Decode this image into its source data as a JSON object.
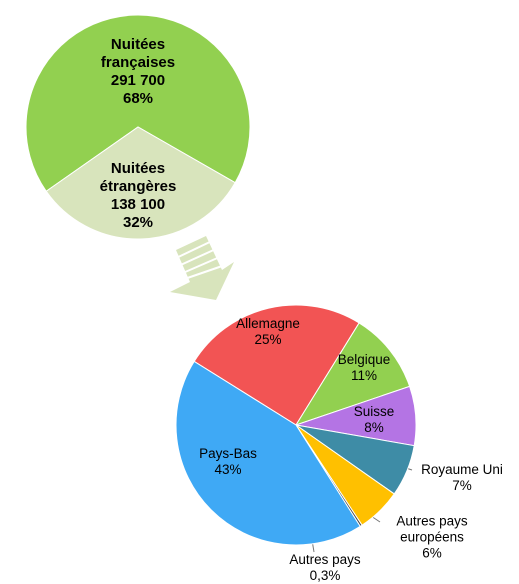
{
  "chart_data": [
    {
      "type": "pie",
      "categories": [
        "Nuitées françaises",
        "Nuitées étrangères"
      ],
      "values": [
        68,
        32
      ],
      "value_labels": [
        "68%",
        "32%"
      ],
      "counts": [
        291700,
        138100
      ],
      "count_labels": [
        "291 700",
        "138 100"
      ],
      "colors": [
        "#92d050",
        "#d8e4bc"
      ]
    },
    {
      "type": "pie",
      "categories": [
        "Allemagne",
        "Belgique",
        "Suisse",
        "Royaume Uni",
        "Autres pays européens",
        "Autres pays",
        "Pays-Bas"
      ],
      "values": [
        25,
        11,
        8,
        7,
        6,
        0.3,
        43
      ],
      "value_labels": [
        "25%",
        "11%",
        "8%",
        "7%",
        "6%",
        "0,3%",
        "43%"
      ],
      "colors": [
        "#f25454",
        "#92d050",
        "#b474e4",
        "#3e8ca6",
        "#ffc000",
        "#4a4a4a",
        "#3fa9f5"
      ]
    }
  ]
}
